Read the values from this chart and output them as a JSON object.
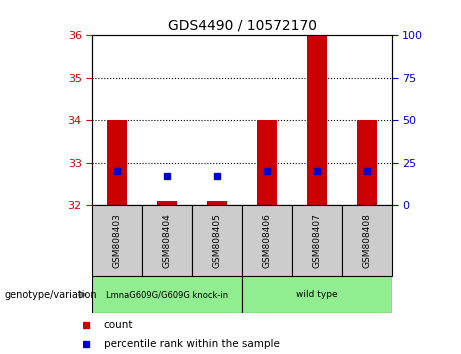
{
  "title": "GDS4490 / 10572170",
  "samples": [
    "GSM808403",
    "GSM808404",
    "GSM808405",
    "GSM808406",
    "GSM808407",
    "GSM808408"
  ],
  "group1_label": "LmnaG609G/G609G knock-in",
  "group2_label": "wild type",
  "group1_color": "#90EE90",
  "group2_color": "#90EE90",
  "count_values": [
    34.0,
    32.1,
    32.1,
    34.0,
    36.0,
    34.0
  ],
  "percentile_values": [
    32.8,
    32.7,
    32.7,
    32.8,
    32.8,
    32.8
  ],
  "ylim_left": [
    32,
    36
  ],
  "ylim_right": [
    0,
    100
  ],
  "yticks_left": [
    32,
    33,
    34,
    35,
    36
  ],
  "yticks_right": [
    0,
    25,
    50,
    75,
    100
  ],
  "bar_bottom": 32,
  "bar_color": "#CC0000",
  "dot_color": "#0000CC",
  "plot_bg": "#FFFFFF",
  "sample_bg": "#CCCCCC",
  "legend_count_label": "count",
  "legend_percentile_label": "percentile rank within the sample",
  "genotype_label": "genotype/variation",
  "left_tick_color": "#CC0000",
  "right_tick_color": "#0000CC",
  "title_fontsize": 10,
  "tick_labelsize": 8,
  "bar_width": 0.4
}
